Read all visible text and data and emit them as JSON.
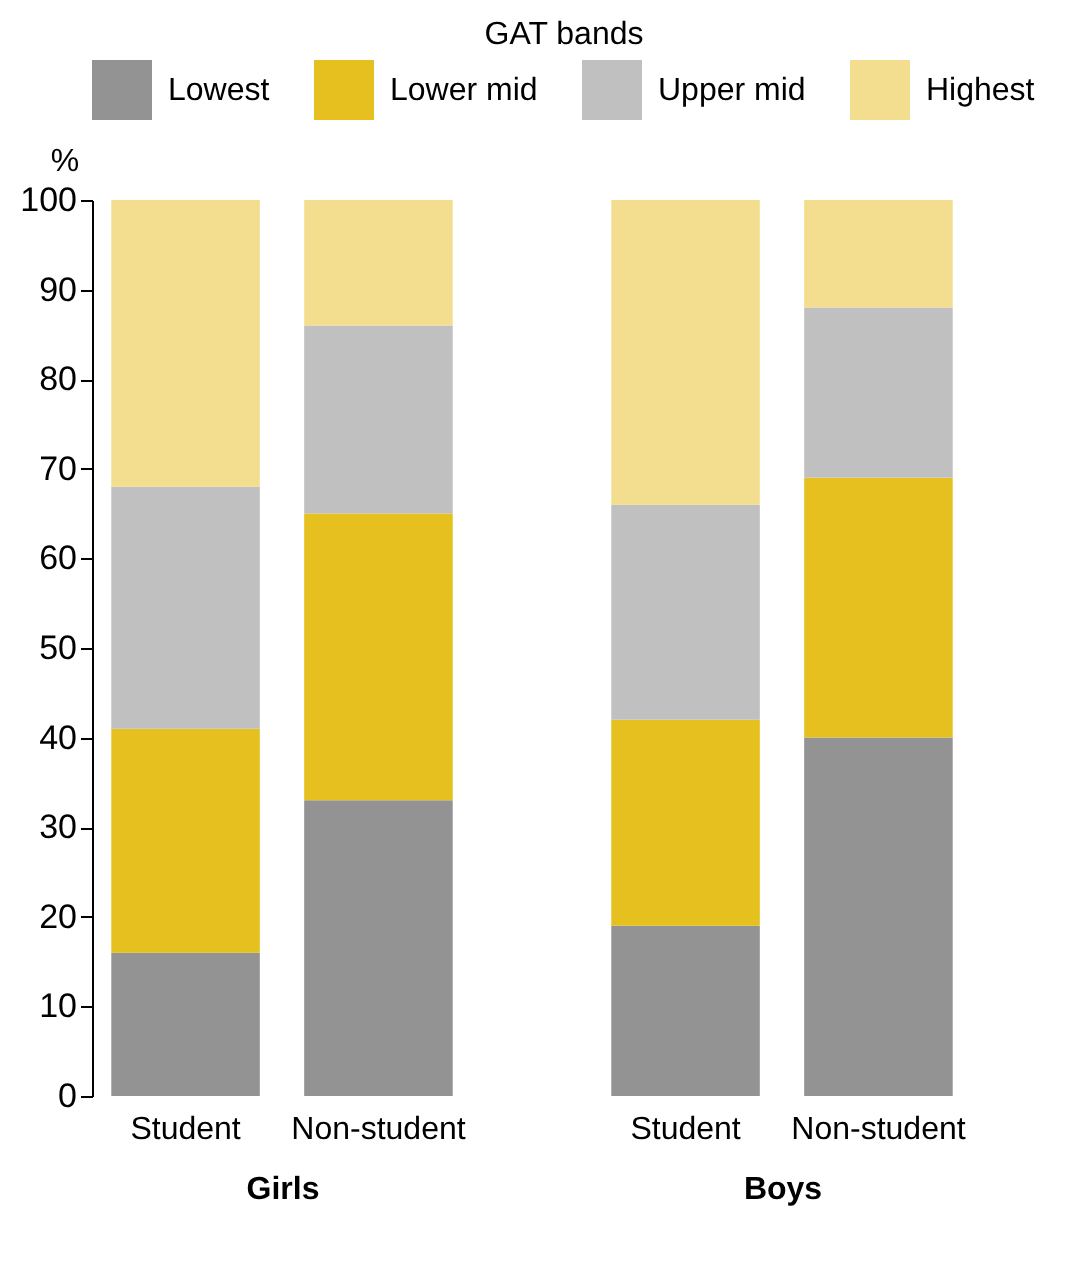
{
  "chart_data": [
    {
      "type": "bar",
      "stacked": true,
      "legend": "top",
      "legend_title": "GAT bands",
      "ylabel": "%",
      "xlabel": "Girls",
      "categories": [
        "Student",
        "Non-student"
      ],
      "ylim": [
        0,
        100
      ],
      "yticks": [
        0,
        10,
        20,
        30,
        40,
        50,
        60,
        70,
        80,
        90,
        100
      ],
      "grid": false,
      "series": [
        {
          "name": "Lowest",
          "color": "#939393",
          "values": [
            16,
            33
          ]
        },
        {
          "name": "Lower mid",
          "color": "#e5c01f",
          "values": [
            25,
            32
          ]
        },
        {
          "name": "Upper mid",
          "color": "#c0c0c0",
          "values": [
            27,
            21
          ]
        },
        {
          "name": "Highest",
          "color": "#f3dd8f",
          "values": [
            32,
            14
          ]
        }
      ]
    },
    {
      "type": "bar",
      "stacked": true,
      "legend": "top",
      "xlabel": "Boys",
      "categories": [
        "Student",
        "Non-student"
      ],
      "ylim": [
        0,
        100
      ],
      "yticks": [
        0,
        10,
        20,
        30,
        40,
        50,
        60,
        70,
        80,
        90,
        100
      ],
      "grid": false,
      "tick_labels": "x",
      "series": [
        {
          "name": "Lowest",
          "color": "#939393",
          "values": [
            19,
            40
          ]
        },
        {
          "name": "Lower mid",
          "color": "#e5c01f",
          "values": [
            23,
            29
          ]
        },
        {
          "name": "Upper mid",
          "color": "#c0c0c0",
          "values": [
            24,
            19
          ]
        },
        {
          "name": "Highest",
          "color": "#f3dd8f",
          "values": [
            34,
            12
          ]
        }
      ]
    }
  ]
}
